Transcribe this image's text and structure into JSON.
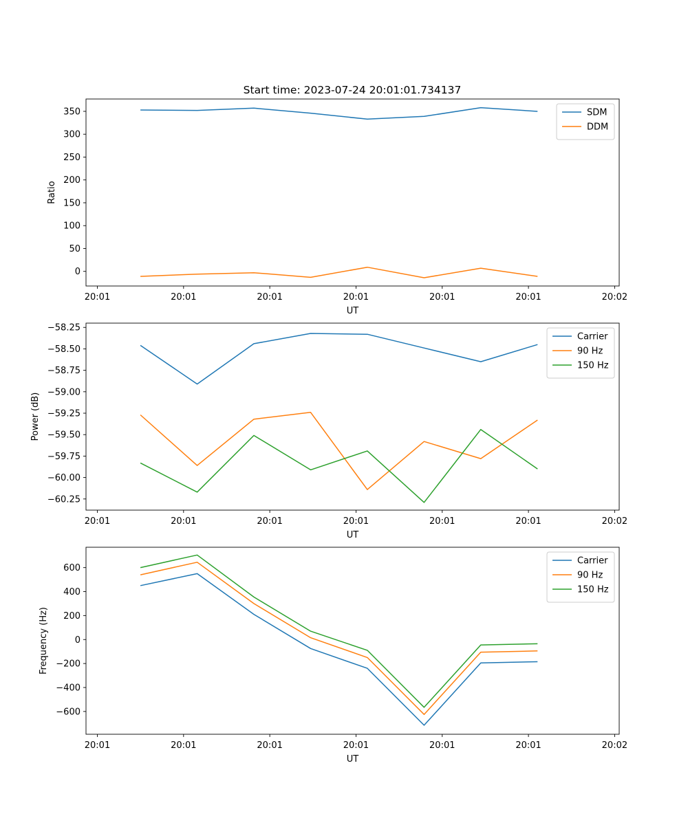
{
  "figure_title": "Start time: 2023-07-24 20:01:01.734137",
  "colors": {
    "c0": "#1f77b4",
    "c1": "#ff7f0e",
    "c2": "#2ca02c"
  },
  "chart_data": [
    {
      "type": "line",
      "title": "Start time: 2023-07-24 20:01:01.734137",
      "xlabel": "UT",
      "ylabel": "Ratio",
      "xlim": [
        -0.1,
        4.6
      ],
      "ylim": [
        -32,
        377
      ],
      "x_ticks": [
        0,
        0.76,
        1.52,
        2.28,
        3.04,
        3.8,
        4.56
      ],
      "x_tick_labels": [
        "20:01",
        "20:01",
        "20:01",
        "20:01",
        "20:01",
        "20:01",
        "20:02"
      ],
      "y_ticks": [
        0,
        50,
        100,
        150,
        200,
        250,
        300,
        350
      ],
      "y_tick_labels": [
        "0",
        "50",
        "100",
        "150",
        "200",
        "250",
        "300",
        "350"
      ],
      "legend_position": "top-right",
      "x": [
        0.38,
        0.88,
        1.38,
        1.88,
        2.38,
        2.88,
        3.38,
        3.88
      ],
      "series": [
        {
          "name": "SDM",
          "color": "#1f77b4",
          "values": [
            353,
            352,
            357,
            346,
            333,
            339,
            358,
            350
          ]
        },
        {
          "name": "DDM",
          "color": "#ff7f0e",
          "values": [
            -11,
            -6,
            -3,
            -13,
            9,
            -14,
            7,
            -11
          ]
        }
      ]
    },
    {
      "type": "line",
      "title": "",
      "xlabel": "UT",
      "ylabel": "Power (dB)",
      "xlim": [
        -0.1,
        4.6
      ],
      "ylim": [
        -60.38,
        -58.2
      ],
      "x_ticks": [
        0,
        0.76,
        1.52,
        2.28,
        3.04,
        3.8,
        4.56
      ],
      "x_tick_labels": [
        "20:01",
        "20:01",
        "20:01",
        "20:01",
        "20:01",
        "20:01",
        "20:02"
      ],
      "y_ticks": [
        -58.25,
        -58.5,
        -58.75,
        -59.0,
        -59.25,
        -59.5,
        -59.75,
        -60.0,
        -60.25
      ],
      "y_tick_labels": [
        "−58.25",
        "−58.50",
        "−58.75",
        "−59.00",
        "−59.25",
        "−59.50",
        "−59.75",
        "−60.00",
        "−60.25"
      ],
      "legend_position": "top-right",
      "x": [
        0.38,
        0.88,
        1.38,
        1.88,
        2.38,
        2.88,
        3.38,
        3.88
      ],
      "series": [
        {
          "name": "Carrier",
          "color": "#1f77b4",
          "values": [
            -58.46,
            -58.91,
            -58.44,
            -58.32,
            -58.33,
            -58.49,
            -58.65,
            -58.45
          ]
        },
        {
          "name": "90 Hz",
          "color": "#ff7f0e",
          "values": [
            -59.27,
            -59.86,
            -59.32,
            -59.24,
            -60.14,
            -59.58,
            -59.78,
            -59.33
          ]
        },
        {
          "name": "150 Hz",
          "color": "#2ca02c",
          "values": [
            -59.83,
            -60.17,
            -59.51,
            -59.91,
            -59.69,
            -60.29,
            -59.44,
            -59.9
          ]
        }
      ]
    },
    {
      "type": "line",
      "title": "",
      "xlabel": "UT",
      "ylabel": "Frequency (Hz)",
      "xlim": [
        -0.1,
        4.6
      ],
      "ylim": [
        -790,
        770
      ],
      "x_ticks": [
        0,
        0.76,
        1.52,
        2.28,
        3.04,
        3.8,
        4.56
      ],
      "x_tick_labels": [
        "20:01",
        "20:01",
        "20:01",
        "20:01",
        "20:01",
        "20:01",
        "20:02"
      ],
      "y_ticks": [
        600,
        400,
        200,
        0,
        -200,
        -400,
        -600
      ],
      "y_tick_labels": [
        "600",
        "400",
        "200",
        "0",
        "−200",
        "−400",
        "−600"
      ],
      "legend_position": "top-right",
      "x": [
        0.38,
        0.88,
        1.38,
        1.88,
        2.38,
        2.88,
        3.38,
        3.88
      ],
      "series": [
        {
          "name": "Carrier",
          "color": "#1f77b4",
          "values": [
            450,
            550,
            210,
            -75,
            -240,
            -715,
            -195,
            -185
          ]
        },
        {
          "name": "90 Hz",
          "color": "#ff7f0e",
          "values": [
            540,
            645,
            300,
            15,
            -150,
            -625,
            -105,
            -95
          ]
        },
        {
          "name": "150 Hz",
          "color": "#2ca02c",
          "values": [
            600,
            705,
            355,
            70,
            -90,
            -565,
            -45,
            -35
          ]
        }
      ]
    }
  ]
}
